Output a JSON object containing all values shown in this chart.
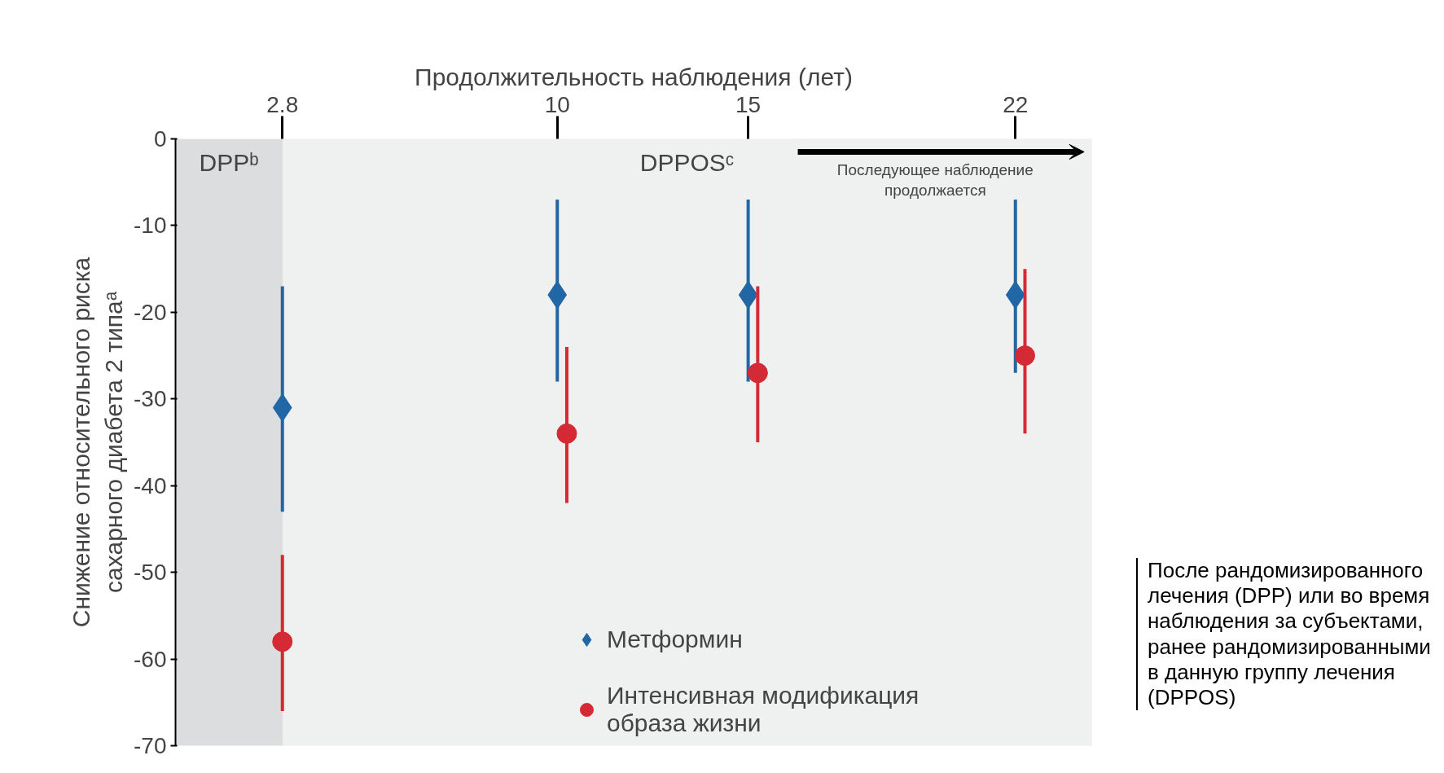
{
  "chart_data": {
    "type": "scatter",
    "xlabel": "Продолжительность наблюдения (лет)",
    "ylabel": "Снижение относительного риска\nсахарного диабета 2 типаᵃ",
    "xlim": [
      0,
      24
    ],
    "xticks": [
      2.8,
      10,
      15,
      22
    ],
    "ylim": [
      -70,
      0
    ],
    "yticks": [
      0,
      -10,
      -20,
      -30,
      -40,
      -50,
      -60,
      -70
    ],
    "legend": "bottom right",
    "series": [
      {
        "name": "Метформин",
        "color": "#2166a5",
        "marker": "diamond",
        "x": [
          2.8,
          10,
          15,
          22
        ],
        "values": [
          -31,
          -18,
          -18,
          -18
        ],
        "errors": [
          [
            -43,
            -17
          ],
          [
            -28,
            -7
          ],
          [
            -28,
            -7
          ],
          [
            -27,
            -7
          ]
        ]
      },
      {
        "name": "Интенсивная модификация образа жизни",
        "color": "#d42a35",
        "marker": "circle",
        "x": [
          2.8,
          10.25,
          15.25,
          22.25
        ],
        "values": [
          -58,
          -34,
          -27,
          -25
        ],
        "errors": [
          [
            -66,
            -48
          ],
          [
            -42,
            -24
          ],
          [
            -35,
            -17
          ],
          [
            -34,
            -15
          ]
        ]
      }
    ],
    "bands": [
      {
        "axis": "x",
        "from": 0,
        "to": 2.8,
        "label": "DPPᵇ",
        "color": "#dcdddf"
      },
      {
        "axis": "x",
        "from": 2.8,
        "to": 24,
        "label": "DPPOSᶜ",
        "color": "#eff0f0"
      }
    ],
    "annotations": [
      "Последующее наблюдение продолжается",
      "После рандомизированного лечения (DPP) или во время наблюдения за субъектами, ранее рандомизированными в данную группу лечения (DPPOS)"
    ]
  }
}
